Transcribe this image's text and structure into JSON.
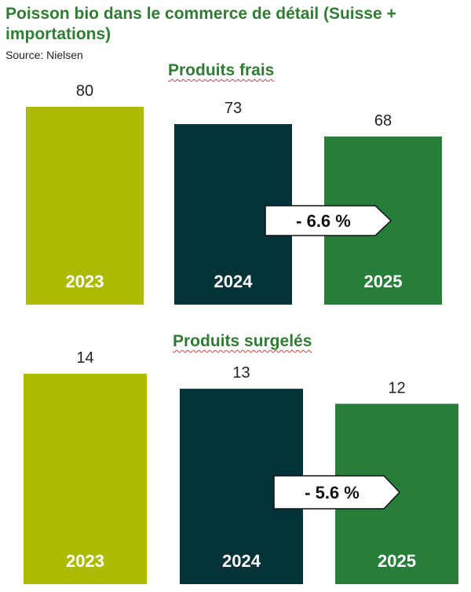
{
  "title": "Poisson bio dans le commerce de détail (Suisse + importations)",
  "source": "Source: Nielsen",
  "colors": {
    "title_green": "#2e7d32",
    "bar_2023": "#adbb00",
    "bar_2024": "#033338",
    "bar_2025": "#277d3a"
  },
  "chart_data": [
    {
      "type": "bar",
      "title": "Produits frais",
      "categories": [
        "2023",
        "2024",
        "2025"
      ],
      "values": [
        80,
        73,
        68
      ],
      "ylim": [
        0,
        80
      ],
      "change_label": "- 6.6 %",
      "grid": false
    },
    {
      "type": "bar",
      "title": "Produits surgelés",
      "categories": [
        "2023",
        "2024",
        "2025"
      ],
      "values": [
        14,
        13,
        12
      ],
      "ylim": [
        0,
        14
      ],
      "change_label": "- 5.6 %",
      "grid": false
    }
  ]
}
